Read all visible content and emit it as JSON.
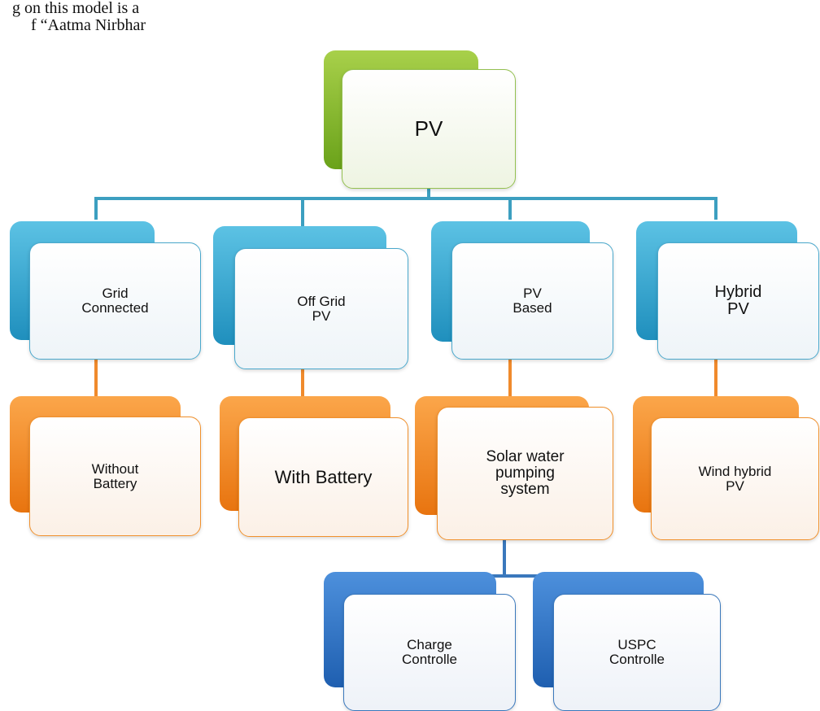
{
  "fragment": {
    "lines": [
      "g on this model is a",
      "f “Aatma Nirbhar"
    ]
  },
  "nodes": [
    {
      "lines": [
        "PV"
      ]
    },
    {
      "lines": [
        "Grid",
        "Connected"
      ]
    },
    {
      "lines": [
        "Off Grid",
        "PV"
      ]
    },
    {
      "lines": [
        "PV",
        "Based"
      ]
    },
    {
      "lines": [
        "Hybrid",
        "PV"
      ]
    },
    {
      "lines": [
        "Without",
        "Battery"
      ]
    },
    {
      "lines": [
        "With Battery"
      ]
    },
    {
      "lines": [
        "Solar water",
        "pumping",
        "system"
      ]
    },
    {
      "lines": [
        "Wind hybrid",
        "PV"
      ]
    },
    {
      "lines": [
        "Charge",
        "Controlle"
      ]
    },
    {
      "lines": [
        "USPC",
        "Controlle"
      ]
    }
  ]
}
